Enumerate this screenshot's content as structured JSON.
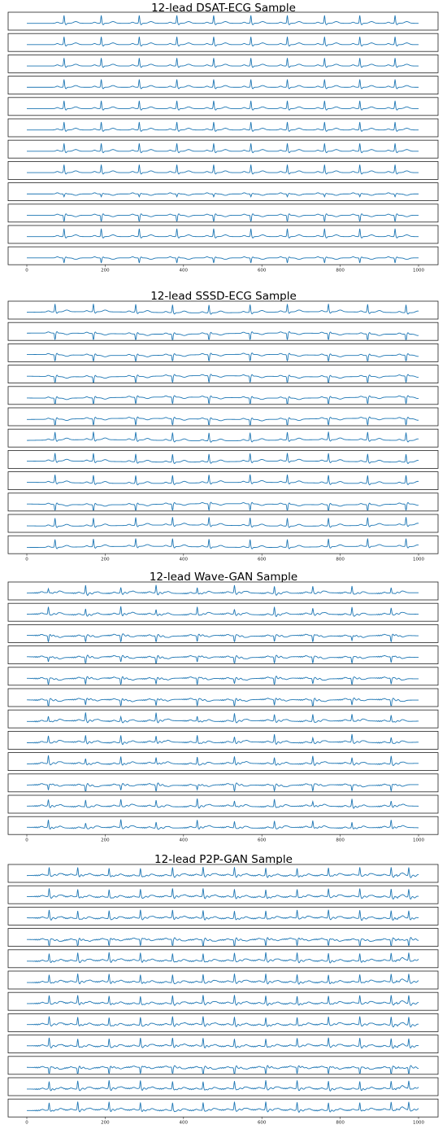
{
  "chart_data": [
    {
      "type": "line",
      "title": "12-lead DSAT-ECG Sample",
      "leads": 12,
      "xlim": [
        0,
        1000
      ],
      "xticks": [
        0,
        200,
        400,
        600,
        800,
        1000
      ],
      "line_color": "#1f77b4",
      "beat_positions": [
        95,
        190,
        287,
        383,
        477,
        572,
        665,
        760,
        850,
        940
      ],
      "polarity": [
        1,
        1,
        1,
        1,
        1,
        1,
        1,
        1,
        -0.6,
        -1,
        1,
        -0.8
      ]
    },
    {
      "type": "line",
      "title": "12-lead SSSD-ECG Sample",
      "leads": 12,
      "xlim": [
        0,
        1000
      ],
      "xticks": [
        0,
        200,
        400,
        600,
        800,
        1000
      ],
      "line_color": "#1f77b4",
      "beat_positions": [
        72,
        170,
        278,
        372,
        465,
        570,
        665,
        770,
        870,
        968
      ],
      "polarity": [
        1,
        -1,
        -1,
        -1,
        -1,
        -1,
        1,
        1,
        1,
        -1,
        1,
        1
      ]
    },
    {
      "type": "line",
      "title": "12-lead Wave-GAN Sample",
      "leads": 12,
      "xlim": [
        0,
        1000
      ],
      "xticks": [
        0,
        200,
        400,
        600,
        800,
        1000
      ],
      "line_color": "#1f77b4",
      "beat_positions": [
        55,
        150,
        240,
        330,
        435,
        530,
        632,
        730,
        830,
        930
      ],
      "polarity": [
        1,
        1,
        -1,
        -1,
        -1,
        -1,
        1,
        1,
        1,
        -1,
        1,
        1
      ]
    },
    {
      "type": "line",
      "title": "12-lead P2P-GAN Sample",
      "leads": 12,
      "xlim": [
        0,
        1000
      ],
      "xticks": [
        0,
        200,
        400,
        600,
        800,
        1000
      ],
      "line_color": "#1f77b4",
      "beat_positions": [
        57,
        130,
        210,
        290,
        372,
        450,
        530,
        610,
        690,
        770,
        850,
        930,
        975
      ],
      "polarity": [
        1,
        1,
        1,
        -1,
        1,
        1,
        1,
        1,
        1,
        -1,
        1,
        1
      ]
    }
  ]
}
